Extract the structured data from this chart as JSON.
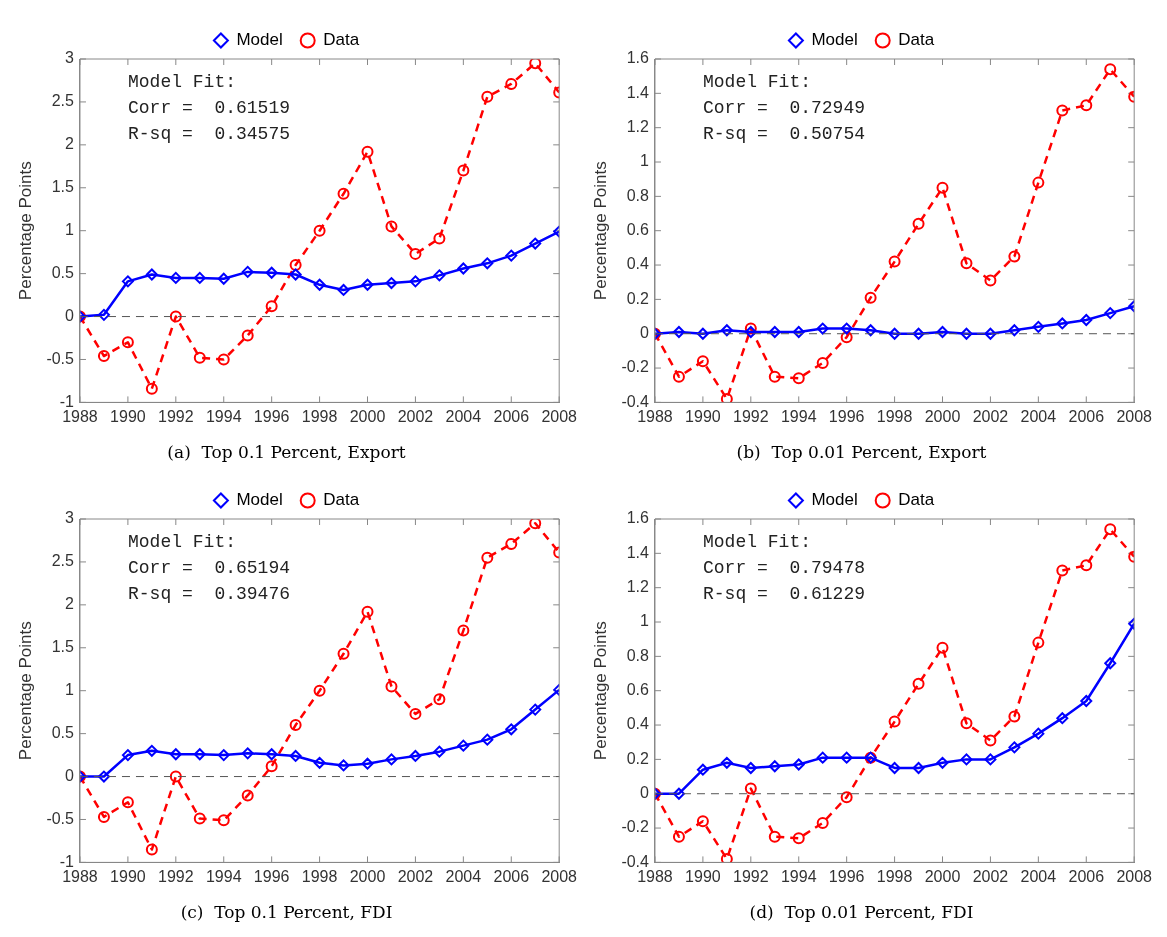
{
  "chart_data": [
    {
      "type": "line",
      "title": "(a)  Top 0.1 Percent, Export",
      "ylabel": "Percentage Points",
      "annotations": [
        "Model Fit:",
        "Corr =  0.61519",
        "R-sq =  0.34575"
      ],
      "x": [
        1988,
        1989,
        1990,
        1991,
        1992,
        1993,
        1994,
        1995,
        1996,
        1997,
        1998,
        1999,
        2000,
        2001,
        2002,
        2003,
        2004,
        2005,
        2006,
        2007,
        2008
      ],
      "xlim": [
        1988,
        2008
      ],
      "xticks": [
        1988,
        1990,
        1992,
        1994,
        1996,
        1998,
        2000,
        2002,
        2004,
        2006,
        2008
      ],
      "ylim": [
        -1,
        3
      ],
      "yticks": [
        -1,
        -0.5,
        0,
        0.5,
        1,
        1.5,
        2,
        2.5,
        3
      ],
      "grid": false,
      "legend": "top",
      "ref_lines": [
        {
          "axis": "y",
          "value": 0,
          "color": "#555555",
          "line_style": "dashed"
        }
      ],
      "series": [
        {
          "name": "Model",
          "color": "#0000ff",
          "marker": "diamond",
          "line_style": "solid",
          "values": [
            0,
            0.02,
            0.41,
            0.49,
            0.45,
            0.45,
            0.44,
            0.52,
            0.51,
            0.49,
            0.37,
            0.31,
            0.37,
            0.39,
            0.41,
            0.48,
            0.56,
            0.62,
            0.71,
            0.85,
            0.99
          ]
        },
        {
          "name": "Data",
          "color": "#ff0000",
          "marker": "circle",
          "line_style": "dashed",
          "values": [
            0,
            -0.46,
            -0.3,
            -0.84,
            0,
            -0.48,
            -0.5,
            -0.22,
            0.12,
            0.6,
            1.0,
            1.43,
            1.92,
            1.05,
            0.73,
            0.91,
            1.7,
            2.56,
            2.71,
            2.95,
            2.61
          ]
        }
      ]
    },
    {
      "type": "line",
      "title": "(b)  Top 0.01 Percent, Export",
      "ylabel": "Percentage Points",
      "annotations": [
        "Model Fit:",
        "Corr =  0.72949",
        "R-sq =  0.50754"
      ],
      "x": [
        1988,
        1989,
        1990,
        1991,
        1992,
        1993,
        1994,
        1995,
        1996,
        1997,
        1998,
        1999,
        2000,
        2001,
        2002,
        2003,
        2004,
        2005,
        2006,
        2007,
        2008
      ],
      "xlim": [
        1988,
        2008
      ],
      "xticks": [
        1988,
        1990,
        1992,
        1994,
        1996,
        1998,
        2000,
        2002,
        2004,
        2006,
        2008
      ],
      "ylim": [
        -0.4,
        1.6
      ],
      "yticks": [
        -0.4,
        -0.2,
        0,
        0.2,
        0.4,
        0.6,
        0.8,
        1,
        1.2,
        1.4,
        1.6
      ],
      "grid": false,
      "legend": "top",
      "ref_lines": [
        {
          "axis": "y",
          "value": 0,
          "color": "#555555",
          "line_style": "dashed"
        }
      ],
      "series": [
        {
          "name": "Model",
          "color": "#0000ff",
          "marker": "diamond",
          "line_style": "solid",
          "values": [
            0,
            0.01,
            0,
            0.02,
            0.01,
            0.01,
            0.01,
            0.03,
            0.03,
            0.02,
            0,
            0,
            0.01,
            0,
            0,
            0.02,
            0.04,
            0.06,
            0.08,
            0.12,
            0.16
          ]
        },
        {
          "name": "Data",
          "color": "#ff0000",
          "marker": "circle",
          "line_style": "dashed",
          "values": [
            0,
            -0.25,
            -0.16,
            -0.38,
            0.03,
            -0.25,
            -0.26,
            -0.17,
            -0.02,
            0.21,
            0.42,
            0.64,
            0.85,
            0.41,
            0.31,
            0.45,
            0.88,
            1.3,
            1.33,
            1.54,
            1.38
          ]
        }
      ]
    },
    {
      "type": "line",
      "title": "(c)  Top 0.1 Percent, FDI",
      "ylabel": "Percentage Points",
      "annotations": [
        "Model Fit:",
        "Corr =  0.65194",
        "R-sq =  0.39476"
      ],
      "x": [
        1988,
        1989,
        1990,
        1991,
        1992,
        1993,
        1994,
        1995,
        1996,
        1997,
        1998,
        1999,
        2000,
        2001,
        2002,
        2003,
        2004,
        2005,
        2006,
        2007,
        2008
      ],
      "xlim": [
        1988,
        2008
      ],
      "xticks": [
        1988,
        1990,
        1992,
        1994,
        1996,
        1998,
        2000,
        2002,
        2004,
        2006,
        2008
      ],
      "ylim": [
        -1,
        3
      ],
      "yticks": [
        -1,
        -0.5,
        0,
        0.5,
        1,
        1.5,
        2,
        2.5,
        3
      ],
      "grid": false,
      "legend": "top",
      "ref_lines": [
        {
          "axis": "y",
          "value": 0,
          "color": "#555555",
          "line_style": "dashed"
        }
      ],
      "series": [
        {
          "name": "Model",
          "color": "#0000ff",
          "marker": "diamond",
          "line_style": "solid",
          "values": [
            0,
            0,
            0.25,
            0.3,
            0.26,
            0.26,
            0.25,
            0.27,
            0.26,
            0.24,
            0.16,
            0.13,
            0.15,
            0.2,
            0.24,
            0.29,
            0.36,
            0.43,
            0.55,
            0.78,
            1.01
          ]
        },
        {
          "name": "Data",
          "color": "#ff0000",
          "marker": "circle",
          "line_style": "dashed",
          "values": [
            0,
            -0.47,
            -0.3,
            -0.85,
            0,
            -0.49,
            -0.51,
            -0.22,
            0.12,
            0.6,
            1.0,
            1.43,
            1.92,
            1.05,
            0.73,
            0.9,
            1.7,
            2.55,
            2.71,
            2.95,
            2.61
          ]
        }
      ]
    },
    {
      "type": "line",
      "title": "(d)  Top 0.01 Percent, FDI",
      "ylabel": "Percentage Points",
      "annotations": [
        "Model Fit:",
        "Corr =  0.79478",
        "R-sq =  0.61229"
      ],
      "x": [
        1988,
        1989,
        1990,
        1991,
        1992,
        1993,
        1994,
        1995,
        1996,
        1997,
        1998,
        1999,
        2000,
        2001,
        2002,
        2003,
        2004,
        2005,
        2006,
        2007,
        2008
      ],
      "xlim": [
        1988,
        2008
      ],
      "xticks": [
        1988,
        1990,
        1992,
        1994,
        1996,
        1998,
        2000,
        2002,
        2004,
        2006,
        2008
      ],
      "ylim": [
        -0.4,
        1.6
      ],
      "yticks": [
        -0.4,
        -0.2,
        0,
        0.2,
        0.4,
        0.6,
        0.8,
        1,
        1.2,
        1.4,
        1.6
      ],
      "grid": false,
      "legend": "top",
      "ref_lines": [
        {
          "axis": "y",
          "value": 0,
          "color": "#555555",
          "line_style": "dashed"
        }
      ],
      "series": [
        {
          "name": "Model",
          "color": "#0000ff",
          "marker": "diamond",
          "line_style": "solid",
          "values": [
            0,
            0,
            0.14,
            0.18,
            0.15,
            0.16,
            0.17,
            0.21,
            0.21,
            0.21,
            0.15,
            0.15,
            0.18,
            0.2,
            0.2,
            0.27,
            0.35,
            0.44,
            0.54,
            0.76,
            0.99
          ]
        },
        {
          "name": "Data",
          "color": "#ff0000",
          "marker": "circle",
          "line_style": "dashed",
          "values": [
            0,
            -0.25,
            -0.16,
            -0.38,
            0.03,
            -0.25,
            -0.26,
            -0.17,
            -0.02,
            0.21,
            0.42,
            0.64,
            0.85,
            0.41,
            0.31,
            0.45,
            0.88,
            1.3,
            1.33,
            1.54,
            1.38
          ]
        }
      ]
    }
  ]
}
